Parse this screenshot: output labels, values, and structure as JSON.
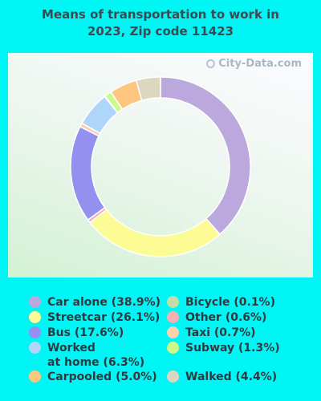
{
  "title": "Means of transportation to work in\n2023, Zip code 11423",
  "watermark": "City-Data.com",
  "chart_data": {
    "type": "pie",
    "variant": "donut",
    "title": "Means of transportation to work in 2023, Zip code 11423",
    "legend_position": "bottom",
    "slices": [
      {
        "label": "Car alone (38.9%)",
        "value": 38.9,
        "color": "#bba8dc"
      },
      {
        "label": "Streetcar (26.1%)",
        "value": 26.1,
        "color": "#fdfb94"
      },
      {
        "label": "Other (0.6%)",
        "value": 0.6,
        "color": "#f2b2b4"
      },
      {
        "label": "Bus (17.6%)",
        "value": 17.6,
        "color": "#9490ef"
      },
      {
        "label": "Taxi (0.7%)",
        "value": 0.7,
        "color": "#fcd1b0"
      },
      {
        "label": "Worked\nat home (6.3%)",
        "value": 6.3,
        "color": "#aed6fb"
      },
      {
        "label": "Bicycle (0.1%)",
        "value": 0.1,
        "color": "#c3dca8"
      },
      {
        "label": "Subway (1.3%)",
        "value": 1.3,
        "color": "#ccf98a"
      },
      {
        "label": "Carpooled (5.0%)",
        "value": 5.0,
        "color": "#fdc67e"
      },
      {
        "label": "Walked (4.4%)",
        "value": 4.4,
        "color": "#dcd7bf"
      }
    ],
    "legend_order": [
      "Car alone (38.9%)",
      "Streetcar (26.1%)",
      "Bus (17.6%)",
      "Worked\nat home (6.3%)",
      "Carpooled (5.0%)",
      "Bicycle (0.1%)",
      "Other (0.6%)",
      "Taxi (0.7%)",
      "Subway (1.3%)",
      "Walked (4.4%)"
    ]
  }
}
